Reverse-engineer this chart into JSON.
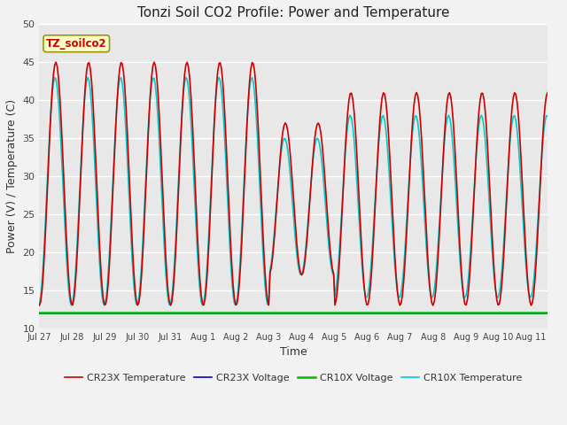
{
  "title": "Tonzi Soil CO2 Profile: Power and Temperature",
  "xlabel": "Time",
  "ylabel": "Power (V) / Temperature (C)",
  "ylim": [
    10,
    50
  ],
  "xlim": [
    0,
    15.5
  ],
  "annotation_text": "TZ_soilco2",
  "annotation_bg": "#ffffcc",
  "annotation_border": "#999900",
  "tick_labels": [
    "Jul 27",
    "Jul 28",
    "Jul 29",
    "Jul 30",
    "Jul 31",
    "Aug 1",
    "Aug 2",
    "Aug 3",
    "Aug 4",
    "Aug 5",
    "Aug 6",
    "Aug 7",
    "Aug 8",
    "Aug 9",
    "Aug 10",
    "Aug 11"
  ],
  "legend_entries": [
    {
      "label": "CR23X Temperature",
      "color": "#cc0000",
      "lw": 1.2
    },
    {
      "label": "CR23X Voltage",
      "color": "#0000cc",
      "lw": 1.2
    },
    {
      "label": "CR10X Voltage",
      "color": "#00bb00",
      "lw": 1.8
    },
    {
      "label": "CR10X Temperature",
      "color": "#00cccc",
      "lw": 1.2
    }
  ],
  "yticks": [
    10,
    15,
    20,
    25,
    30,
    35,
    40,
    45,
    50
  ],
  "plot_bg": "#e8e8e8",
  "fig_bg": "#f2f2f2",
  "grid_color": "#ffffff",
  "volt_level": 12.0
}
